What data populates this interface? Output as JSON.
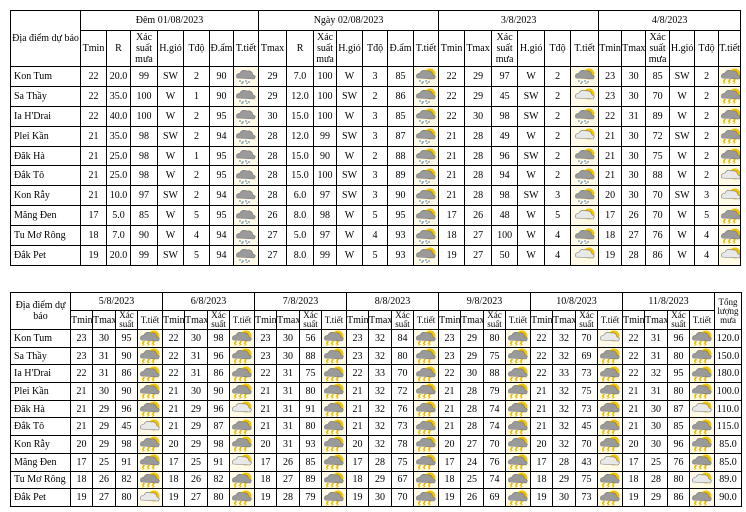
{
  "colors": {
    "cloud": "#9a9a9a",
    "sun": "#f5c400",
    "rain": "#6a8fb5",
    "bolt": "#e8b800",
    "icon_bg": "#fffbe6"
  },
  "top": {
    "location_header": "Địa điểm dự báo",
    "groups": [
      {
        "title": "Đêm 01/08/2023",
        "columns": [
          "Tmin",
          "R",
          "Xác suất mưa",
          "H.gió",
          "Tđộ",
          "Đ.ẩm",
          "T.tiết"
        ]
      },
      {
        "title": "Ngày 02/08/2023",
        "columns": [
          "Tmax",
          "R",
          "Xác suất mưa",
          "H.gió",
          "Tđộ",
          "Đ.ẩm",
          "T.tiết"
        ]
      },
      {
        "title": "3/8/2023",
        "columns": [
          "Tmin",
          "Tmax",
          "Xác suất mưa",
          "H.gió",
          "Tđộ",
          "T.tiết"
        ]
      },
      {
        "title": "4/8/2023",
        "columns": [
          "Tmin",
          "Tmax",
          "Xác suất mưa",
          "H.gió",
          "Tđộ",
          "T.tiết"
        ]
      }
    ],
    "rows": [
      {
        "location": "Kon Tum",
        "cells": [
          [
            "22",
            "20.0",
            "99",
            "SW",
            "2",
            "90",
            "rain-icon"
          ],
          [
            "29",
            "7.0",
            "100",
            "W",
            "3",
            "85",
            "cloud-sun-rain-icon"
          ],
          [
            "22",
            "29",
            "97",
            "W",
            "2",
            "cloud-sun-rain-icon"
          ],
          [
            "23",
            "30",
            "85",
            "SW",
            "2",
            "thunderstorm-icon"
          ]
        ]
      },
      {
        "location": "Sa Thầy",
        "cells": [
          [
            "22",
            "35.0",
            "100",
            "W",
            "1",
            "90",
            "rain-icon"
          ],
          [
            "29",
            "12.0",
            "100",
            "SW",
            "2",
            "86",
            "cloud-sun-rain-icon"
          ],
          [
            "22",
            "29",
            "45",
            "SW",
            "2",
            "cloud-sun-icon"
          ],
          [
            "23",
            "30",
            "70",
            "W",
            "2",
            "thunderstorm-icon"
          ]
        ]
      },
      {
        "location": "Ia H'Drai",
        "cells": [
          [
            "22",
            "40.0",
            "100",
            "W",
            "2",
            "95",
            "rain-icon"
          ],
          [
            "30",
            "15.0",
            "100",
            "W",
            "3",
            "85",
            "cloud-sun-rain-icon"
          ],
          [
            "22",
            "30",
            "98",
            "SW",
            "2",
            "cloud-sun-rain-icon"
          ],
          [
            "22",
            "31",
            "89",
            "W",
            "2",
            "thunderstorm-icon"
          ]
        ]
      },
      {
        "location": "Plei Kần",
        "cells": [
          [
            "21",
            "35.0",
            "98",
            "SW",
            "2",
            "94",
            "rain-icon"
          ],
          [
            "28",
            "12.0",
            "99",
            "SW",
            "3",
            "87",
            "cloud-sun-rain-icon"
          ],
          [
            "21",
            "28",
            "49",
            "W",
            "2",
            "cloud-sun-icon"
          ],
          [
            "21",
            "30",
            "72",
            "SW",
            "2",
            "thunderstorm-icon"
          ]
        ]
      },
      {
        "location": "Đăk Hà",
        "cells": [
          [
            "21",
            "25.0",
            "98",
            "W",
            "1",
            "95",
            "rain-icon"
          ],
          [
            "28",
            "15.0",
            "90",
            "W",
            "2",
            "88",
            "cloud-sun-rain-icon"
          ],
          [
            "21",
            "28",
            "96",
            "SW",
            "2",
            "cloud-sun-rain-icon"
          ],
          [
            "21",
            "30",
            "75",
            "W",
            "2",
            "thunderstorm-icon"
          ]
        ]
      },
      {
        "location": "Đắk Tô",
        "cells": [
          [
            "21",
            "25.0",
            "98",
            "W",
            "2",
            "95",
            "rain-icon"
          ],
          [
            "28",
            "15.0",
            "100",
            "SW",
            "3",
            "89",
            "cloud-sun-rain-icon"
          ],
          [
            "21",
            "28",
            "94",
            "W",
            "2",
            "cloud-sun-rain-icon"
          ],
          [
            "21",
            "30",
            "88",
            "W",
            "2",
            "cloud-sun-icon"
          ]
        ]
      },
      {
        "location": "Kon Rẫy",
        "cells": [
          [
            "21",
            "10.0",
            "97",
            "SW",
            "2",
            "94",
            "rain-icon"
          ],
          [
            "28",
            "6.0",
            "97",
            "SW",
            "3",
            "90",
            "cloud-sun-rain-icon"
          ],
          [
            "21",
            "28",
            "98",
            "SW",
            "3",
            "cloud-sun-rain-icon"
          ],
          [
            "20",
            "30",
            "70",
            "SW",
            "3",
            "cloud-sun-icon"
          ]
        ]
      },
      {
        "location": "Măng Đen",
        "cells": [
          [
            "17",
            "5.0",
            "85",
            "W",
            "5",
            "95",
            "rain-icon"
          ],
          [
            "26",
            "8.0",
            "98",
            "W",
            "5",
            "95",
            "cloud-sun-rain-icon"
          ],
          [
            "17",
            "26",
            "48",
            "W",
            "5",
            "cloud-sun-icon"
          ],
          [
            "17",
            "26",
            "70",
            "W",
            "5",
            "thunderstorm-icon"
          ]
        ]
      },
      {
        "location": "Tu Mơ Rông",
        "cells": [
          [
            "18",
            "7.0",
            "90",
            "W",
            "4",
            "94",
            "rain-icon"
          ],
          [
            "27",
            "5.0",
            "97",
            "W",
            "4",
            "93",
            "cloud-sun-rain-icon"
          ],
          [
            "18",
            "27",
            "100",
            "W",
            "4",
            "cloud-sun-rain-icon"
          ],
          [
            "18",
            "27",
            "76",
            "W",
            "4",
            "thunderstorm-icon"
          ]
        ]
      },
      {
        "location": "Đắk Pet",
        "cells": [
          [
            "19",
            "20.0",
            "99",
            "SW",
            "5",
            "94",
            "rain-icon"
          ],
          [
            "27",
            "8.0",
            "99",
            "W",
            "5",
            "93",
            "cloud-sun-rain-icon"
          ],
          [
            "19",
            "27",
            "50",
            "W",
            "4",
            "cloud-sun-icon"
          ],
          [
            "19",
            "28",
            "86",
            "W",
            "4",
            "cloud-sun-icon"
          ]
        ]
      }
    ]
  },
  "bottom": {
    "location_header": "Địa điểm dự báo",
    "total_header": "Tổng lượng mưa",
    "columns": [
      "Tmin",
      "Tmax",
      "Xác suất",
      "T.tiết"
    ],
    "dates": [
      "5/8/2023",
      "6/8/2023",
      "7/8/2023",
      "8/8/2023",
      "9/8/2023",
      "10/8/2023",
      "11/8/2023"
    ],
    "rows": [
      {
        "location": "Kon Tum",
        "total": "120.0",
        "cells": [
          [
            "23",
            "30",
            "95",
            "thunderstorm-icon"
          ],
          [
            "22",
            "30",
            "98",
            "thunderstorm-icon"
          ],
          [
            "23",
            "30",
            "56",
            "thunderstorm-icon"
          ],
          [
            "23",
            "32",
            "84",
            "thunderstorm-icon"
          ],
          [
            "23",
            "29",
            "80",
            "thunderstorm-icon"
          ],
          [
            "22",
            "32",
            "70",
            "cloud-sun-icon"
          ],
          [
            "22",
            "31",
            "96",
            "thunderstorm-icon"
          ]
        ]
      },
      {
        "location": "Sa Thầy",
        "total": "150.0",
        "cells": [
          [
            "23",
            "31",
            "90",
            "thunderstorm-icon"
          ],
          [
            "22",
            "31",
            "96",
            "thunderstorm-icon"
          ],
          [
            "23",
            "30",
            "88",
            "thunderstorm-icon"
          ],
          [
            "23",
            "32",
            "80",
            "thunderstorm-icon"
          ],
          [
            "23",
            "29",
            "75",
            "thunderstorm-icon"
          ],
          [
            "22",
            "32",
            "69",
            "thunderstorm-icon"
          ],
          [
            "22",
            "31",
            "80",
            "thunderstorm-icon"
          ]
        ]
      },
      {
        "location": "Ia H'Drai",
        "total": "180.0",
        "cells": [
          [
            "22",
            "31",
            "86",
            "thunderstorm-icon"
          ],
          [
            "22",
            "31",
            "86",
            "thunderstorm-icon"
          ],
          [
            "22",
            "31",
            "75",
            "thunderstorm-icon"
          ],
          [
            "22",
            "33",
            "70",
            "thunderstorm-icon"
          ],
          [
            "22",
            "30",
            "88",
            "thunderstorm-icon"
          ],
          [
            "22",
            "33",
            "73",
            "thunderstorm-icon"
          ],
          [
            "22",
            "32",
            "95",
            "thunderstorm-icon"
          ]
        ]
      },
      {
        "location": "Plei Kần",
        "total": "100.0",
        "cells": [
          [
            "21",
            "30",
            "90",
            "thunderstorm-icon"
          ],
          [
            "21",
            "30",
            "90",
            "thunderstorm-icon"
          ],
          [
            "21",
            "31",
            "80",
            "thunderstorm-icon"
          ],
          [
            "21",
            "32",
            "72",
            "thunderstorm-icon"
          ],
          [
            "21",
            "28",
            "79",
            "thunderstorm-icon"
          ],
          [
            "21",
            "32",
            "75",
            "thunderstorm-icon"
          ],
          [
            "21",
            "31",
            "80",
            "thunderstorm-icon"
          ]
        ]
      },
      {
        "location": "Đăk Hà",
        "total": "110.0",
        "cells": [
          [
            "21",
            "29",
            "96",
            "thunderstorm-icon"
          ],
          [
            "21",
            "29",
            "96",
            "cloud-sun-icon"
          ],
          [
            "21",
            "31",
            "91",
            "thunderstorm-icon"
          ],
          [
            "21",
            "32",
            "76",
            "thunderstorm-icon"
          ],
          [
            "21",
            "28",
            "74",
            "thunderstorm-icon"
          ],
          [
            "21",
            "32",
            "73",
            "thunderstorm-icon"
          ],
          [
            "21",
            "30",
            "87",
            "cloud-sun-icon"
          ]
        ]
      },
      {
        "location": "Đắk Tô",
        "total": "115.0",
        "cells": [
          [
            "21",
            "29",
            "45",
            "cloud-sun-icon"
          ],
          [
            "21",
            "29",
            "87",
            "thunderstorm-icon"
          ],
          [
            "21",
            "31",
            "80",
            "thunderstorm-icon"
          ],
          [
            "21",
            "32",
            "73",
            "thunderstorm-icon"
          ],
          [
            "21",
            "28",
            "74",
            "thunderstorm-icon"
          ],
          [
            "21",
            "32",
            "45",
            "thunderstorm-icon"
          ],
          [
            "21",
            "30",
            "85",
            "thunderstorm-icon"
          ]
        ]
      },
      {
        "location": "Kon Rẫy",
        "total": "85.0",
        "cells": [
          [
            "20",
            "29",
            "98",
            "thunderstorm-icon"
          ],
          [
            "20",
            "29",
            "98",
            "thunderstorm-icon"
          ],
          [
            "20",
            "31",
            "93",
            "thunderstorm-icon"
          ],
          [
            "20",
            "32",
            "78",
            "thunderstorm-icon"
          ],
          [
            "20",
            "27",
            "70",
            "thunderstorm-icon"
          ],
          [
            "20",
            "32",
            "70",
            "thunderstorm-icon"
          ],
          [
            "20",
            "30",
            "96",
            "thunderstorm-icon"
          ]
        ]
      },
      {
        "location": "Măng Đen",
        "total": "85.0",
        "cells": [
          [
            "17",
            "25",
            "91",
            "thunderstorm-icon"
          ],
          [
            "17",
            "25",
            "91",
            "cloud-sun-icon"
          ],
          [
            "17",
            "26",
            "85",
            "thunderstorm-icon"
          ],
          [
            "17",
            "28",
            "75",
            "thunderstorm-icon"
          ],
          [
            "17",
            "24",
            "76",
            "thunderstorm-icon"
          ],
          [
            "17",
            "28",
            "43",
            "cloud-sun-icon"
          ],
          [
            "17",
            "25",
            "76",
            "thunderstorm-icon"
          ]
        ]
      },
      {
        "location": "Tu Mơ Rông",
        "total": "89.0",
        "cells": [
          [
            "18",
            "26",
            "82",
            "thunderstorm-icon"
          ],
          [
            "18",
            "26",
            "82",
            "thunderstorm-icon"
          ],
          [
            "18",
            "27",
            "89",
            "thunderstorm-icon"
          ],
          [
            "18",
            "29",
            "67",
            "thunderstorm-icon"
          ],
          [
            "18",
            "25",
            "74",
            "thunderstorm-icon"
          ],
          [
            "18",
            "29",
            "75",
            "thunderstorm-icon"
          ],
          [
            "18",
            "28",
            "80",
            "cloud-sun-icon"
          ]
        ]
      },
      {
        "location": "Đắk Pet",
        "total": "90.0",
        "cells": [
          [
            "19",
            "27",
            "80",
            "cloud-sun-icon"
          ],
          [
            "19",
            "27",
            "80",
            "thunderstorm-icon"
          ],
          [
            "19",
            "28",
            "79",
            "thunderstorm-icon"
          ],
          [
            "19",
            "30",
            "70",
            "thunderstorm-icon"
          ],
          [
            "19",
            "26",
            "69",
            "thunderstorm-icon"
          ],
          [
            "19",
            "30",
            "73",
            "thunderstorm-icon"
          ],
          [
            "19",
            "29",
            "86",
            "thunderstorm-icon"
          ]
        ]
      }
    ]
  }
}
